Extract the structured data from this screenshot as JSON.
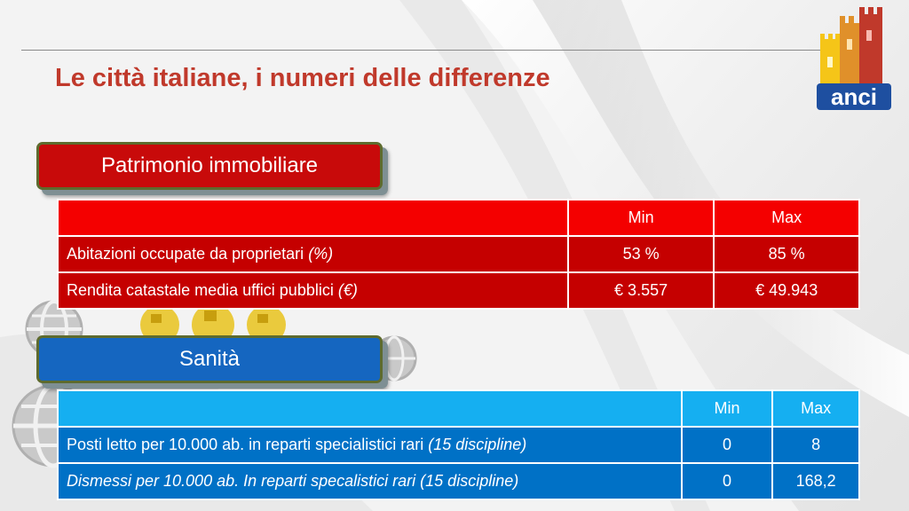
{
  "title": "Le città italiane, i numeri delle differenze",
  "logo": {
    "text": "anci",
    "icon": "anci-towers-logo"
  },
  "sections": [
    {
      "label": "Patrimonio immobiliare",
      "color": "#c80a0a",
      "headers": [
        "",
        "Min",
        "Max"
      ],
      "rows": [
        {
          "label": "Abitazioni occupate da proprietari",
          "unit": "(%)",
          "min": "53 %",
          "max": "85 %"
        },
        {
          "label": "Rendita catastale media uffici pubblici",
          "unit": "(€)",
          "min": "€ 3.557",
          "max": "€ 49.943"
        }
      ]
    },
    {
      "label": "Sanità",
      "color": "#1566c0",
      "headers": [
        "",
        "Min",
        "Max"
      ],
      "rows": [
        {
          "label": "Posti letto per 10.000 ab. in reparti specialistici rari",
          "unit": "(15 discipline)",
          "min": "0",
          "max": "8"
        },
        {
          "label": "Dismessi per 10.000 ab. In reparti specalistici rari (15 discipline)",
          "min": "0",
          "max": "168,2"
        }
      ]
    }
  ]
}
